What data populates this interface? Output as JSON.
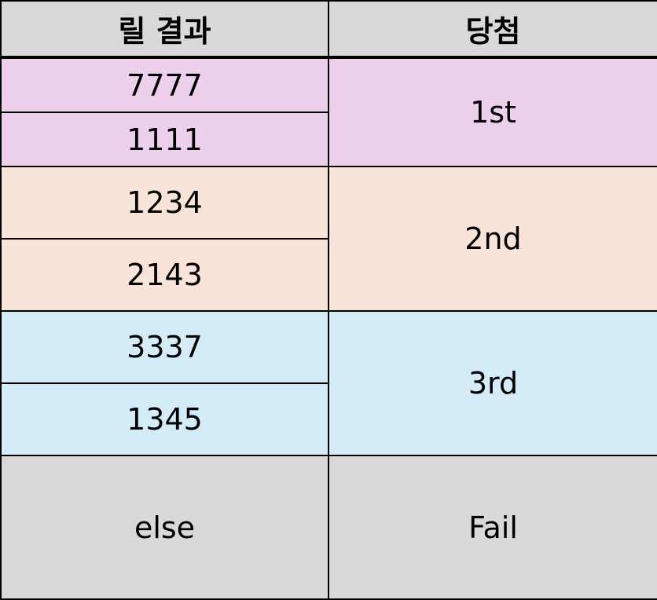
{
  "header": {
    "reel_result": "릴 결과",
    "prize": "당첨"
  },
  "tiers": [
    {
      "results": [
        "7777",
        "1111"
      ],
      "prize": "1st",
      "color": "#edd0ec"
    },
    {
      "results": [
        "1234",
        "2143"
      ],
      "prize": "2nd",
      "color": "#f8e4d8"
    },
    {
      "results": [
        "3337",
        "1345"
      ],
      "prize": "3rd",
      "color": "#d4ecf8"
    },
    {
      "results": [
        "else"
      ],
      "prize": "Fail",
      "color": "#d9d9d9"
    }
  ],
  "colors": {
    "header_bg": "#d9d9d9",
    "border": "#000000"
  }
}
